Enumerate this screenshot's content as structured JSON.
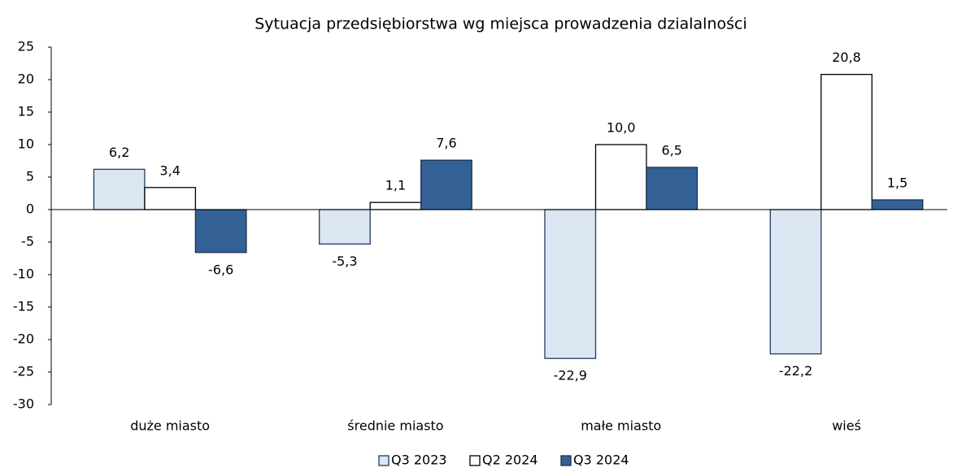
{
  "chart_data": {
    "type": "bar",
    "title": "Sytuacja przedsiębiorstwa wg miejsca prowadzenia dzialalności",
    "categories": [
      "duże miasto",
      "średnie miasto",
      "małe miasto",
      "wieś"
    ],
    "series": [
      {
        "name": "Q3 2023",
        "color": "#dce6f2",
        "stroke": "#1f3b63",
        "values": [
          6.2,
          -5.3,
          -22.9,
          -22.2
        ],
        "value_labels": [
          "6,2",
          "-5,3",
          "-22,9",
          "-22,2"
        ]
      },
      {
        "name": "Q2 2024",
        "color": "#ffffff",
        "stroke": "#000000",
        "values": [
          3.4,
          1.1,
          10.0,
          20.8
        ],
        "value_labels": [
          "3,4",
          "1,1",
          "10,0",
          "20,8"
        ]
      },
      {
        "name": "Q3 2024",
        "color": "#336195",
        "stroke": "#1a2f4d",
        "values": [
          -6.6,
          7.6,
          6.5,
          1.5
        ],
        "value_labels": [
          "-6,6",
          "7,6",
          "6,5",
          "1,5"
        ]
      }
    ],
    "ylim": [
      -30,
      25
    ],
    "yticks": [
      -30,
      -25,
      -20,
      -15,
      -10,
      -5,
      0,
      5,
      10,
      15,
      20,
      25
    ],
    "legend": "bottom"
  }
}
